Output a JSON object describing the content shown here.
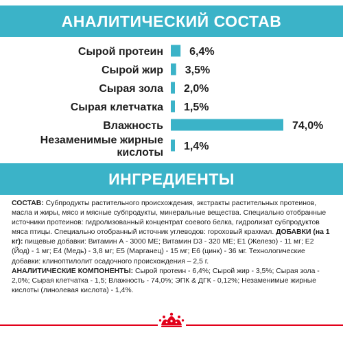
{
  "analysis": {
    "title": "АНАЛИТИЧЕСКИЙ СОСТАВ"
  },
  "chart_data": {
    "type": "bar",
    "orientation": "horizontal",
    "categories": [
      "Сырой протеин",
      "Сырой жир",
      "Сырая зола",
      "Сырая клетчатка",
      "Влажность",
      "Незаменимые жирные кислоты"
    ],
    "values": [
      6.4,
      3.5,
      2.0,
      1.5,
      74.0,
      1.4
    ],
    "value_labels": [
      "6,4%",
      "3,5%",
      "2,0%",
      "1,5%",
      "74,0%",
      "1,4%"
    ],
    "unit": "%",
    "title": "",
    "xlabel": "",
    "ylabel": "",
    "grid": false,
    "legend": "none",
    "bar_color": "#3bb3c8"
  },
  "ingredients": {
    "title": "ИНГРЕДИЕНТЫ",
    "composition_label": "СОСТАВ:",
    "composition_text": " Субпродукты растительного происхождения, экстракты растительных протеинов, масла и жиры, мясо и мясные субпродукты, минеральные вещества. Специально отобранные источники протеинов: гидролизованный концентрат соевого белка, гидролизат субпродуктов мяса птицы. Специально отобранный источник углеводов: гороховый крахмал. ",
    "additives_label": "ДОБАВКИ (на 1 кг):",
    "additives_text": " пищевые добавки: Витамин А - 3000 МЕ; Витамин D3 - 320 МЕ; Е1 (Железо) - 11 мг; Е2 (Йод) - 1 мг; Е4 (Медь) - 3,8 мг; Е5 (Марганец) - 15 мг; Е6 (цинк) - 36 мг. Технологические добавки: клиноптилолит осадочного происхождения – 2,5 г.",
    "analytical_label": "АНАЛИТИЧЕСКИЕ КОМПОНЕНТЫ:",
    "analytical_text": " Сырой протеин - 6,4%; Сырой жир - 3,5%; Сырая зола - 2,0%; Сырая клетчатка - 1,5; Влажность - 74,0%; ЭПК & ДГК - 0,12%; Незаменимые жирные кислоты (линолевая кислота) - 1,4%."
  },
  "brand": {
    "logo_icon": "crown-icon",
    "accent_color": "#e2001a"
  }
}
